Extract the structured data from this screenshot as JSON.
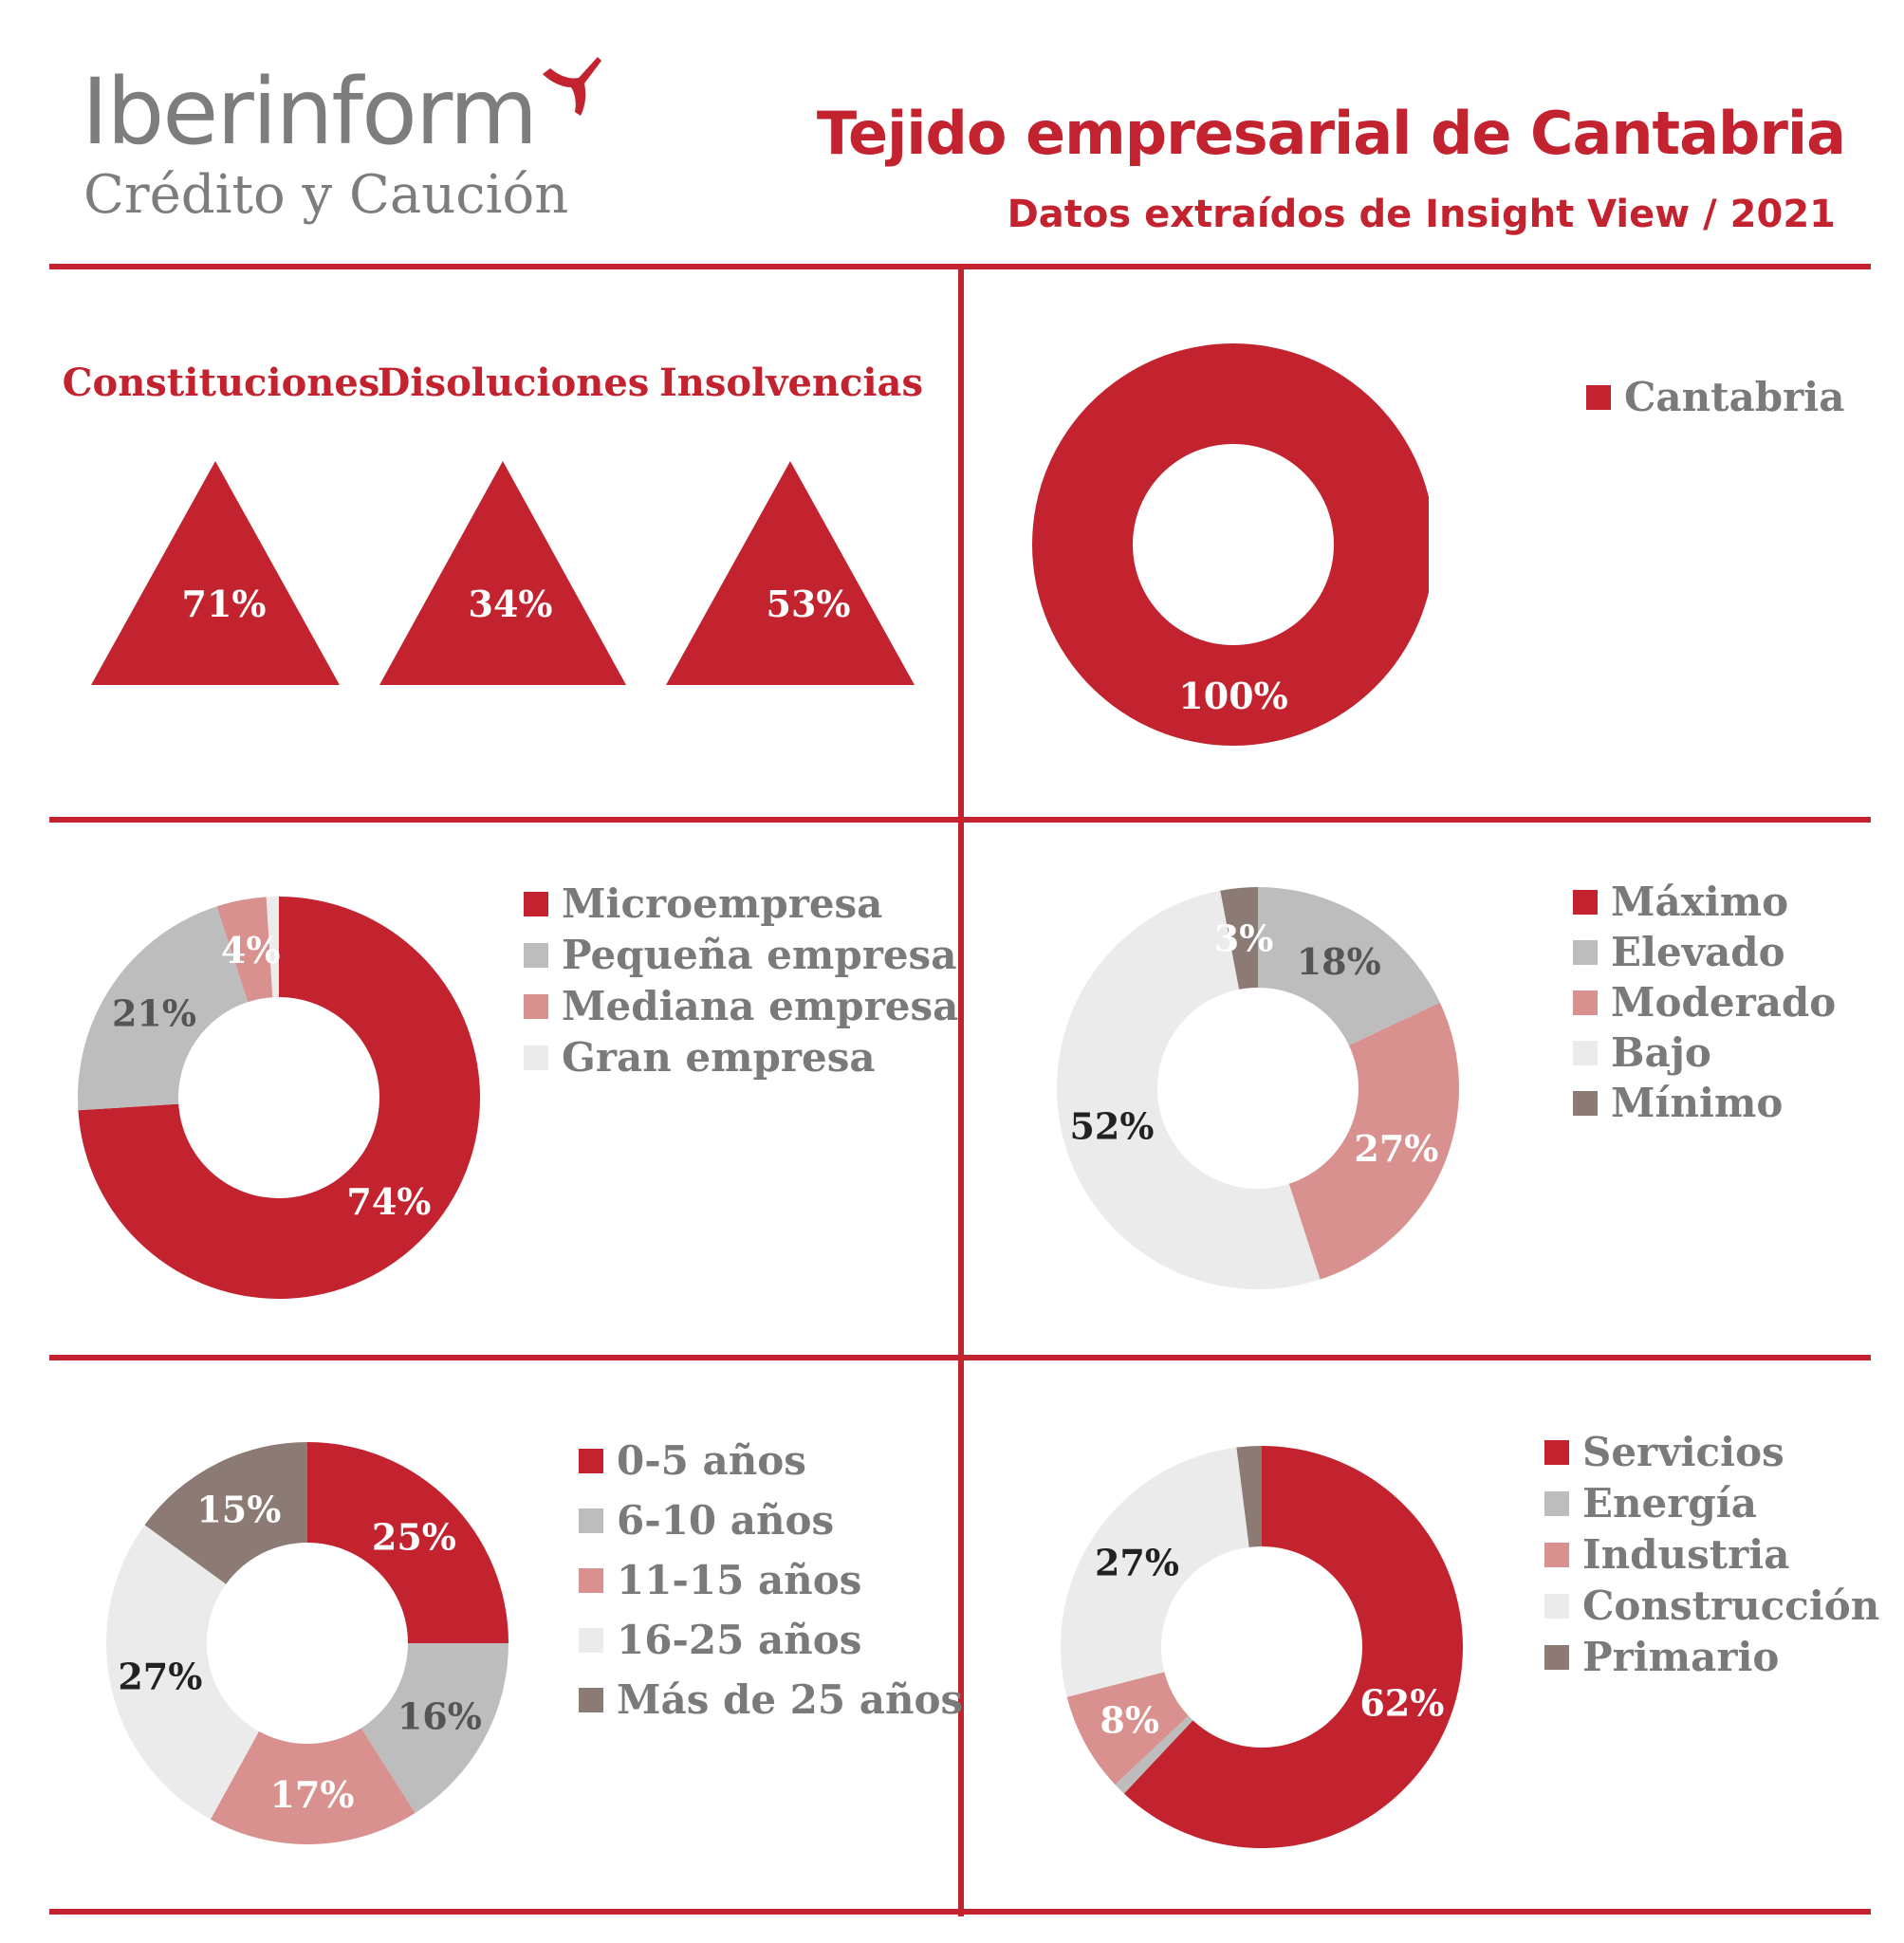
{
  "header": {
    "logo_main": "Iberinform",
    "logo_sub": "Crédito y Caución",
    "title": "Tejido empresarial de Cantabria",
    "subtitle": "Datos extraídos de Insight View / 2021"
  },
  "colors": {
    "brand_red": "#c3232f",
    "gray": "#bdbdbd",
    "pink": "#d9918f",
    "light": "#ebebeb",
    "brown": "#8c7b74",
    "logo_gray": "#7d7d7d"
  },
  "chart_data": [
    {
      "type": "indicator",
      "id": "triangles",
      "categories": [
        "Constituciones",
        "Disoluciones",
        "Insolvencias"
      ],
      "values": [
        71,
        34,
        53
      ],
      "labels": [
        "71%",
        "34%",
        "53%"
      ]
    },
    {
      "type": "pie",
      "id": "territorio",
      "donut": true,
      "categories": [
        "Cantabria"
      ],
      "values": [
        100
      ],
      "labels": [
        "100%"
      ],
      "colors": [
        "#c3232f"
      ],
      "legend": "right"
    },
    {
      "type": "pie",
      "id": "tamano",
      "donut": true,
      "categories": [
        "Microempresa",
        "Pequeña empresa",
        "Mediana empresa",
        "Gran empresa"
      ],
      "values": [
        74,
        21,
        4,
        1
      ],
      "labels": [
        "74%",
        "21%",
        "4%",
        ""
      ],
      "colors": [
        "#c3232f",
        "#bdbdbd",
        "#d9918f",
        "#ebebeb"
      ],
      "legend": "right"
    },
    {
      "type": "pie",
      "id": "riesgo",
      "donut": true,
      "categories": [
        "Máximo",
        "Elevado",
        "Moderado",
        "Bajo",
        "Mínimo"
      ],
      "values": [
        0,
        18,
        27,
        52,
        3
      ],
      "labels": [
        "",
        "18%",
        "27%",
        "52%",
        "3%"
      ],
      "colors": [
        "#c3232f",
        "#bdbdbd",
        "#d9918f",
        "#ebebeb",
        "#8c7b74"
      ],
      "legend": "right"
    },
    {
      "type": "pie",
      "id": "antiguedad",
      "donut": true,
      "categories": [
        "0-5 años",
        "6-10 años",
        "11-15 años",
        "16-25 años",
        "Más de 25 años"
      ],
      "values": [
        25,
        16,
        17,
        27,
        15
      ],
      "labels": [
        "25%",
        "16%",
        "17%",
        "27%",
        "15%"
      ],
      "colors": [
        "#c3232f",
        "#bdbdbd",
        "#d9918f",
        "#ebebeb",
        "#8c7b74"
      ],
      "legend": "right"
    },
    {
      "type": "pie",
      "id": "sector",
      "donut": true,
      "categories": [
        "Servicios",
        "Energía",
        "Industria",
        "Construcción",
        "Primario"
      ],
      "values": [
        62,
        1,
        8,
        27,
        2
      ],
      "labels": [
        "62%",
        "",
        "8%",
        "27%",
        ""
      ],
      "colors": [
        "#c3232f",
        "#bdbdbd",
        "#d9918f",
        "#ebebeb",
        "#8c7b74"
      ],
      "legend": "right"
    }
  ]
}
